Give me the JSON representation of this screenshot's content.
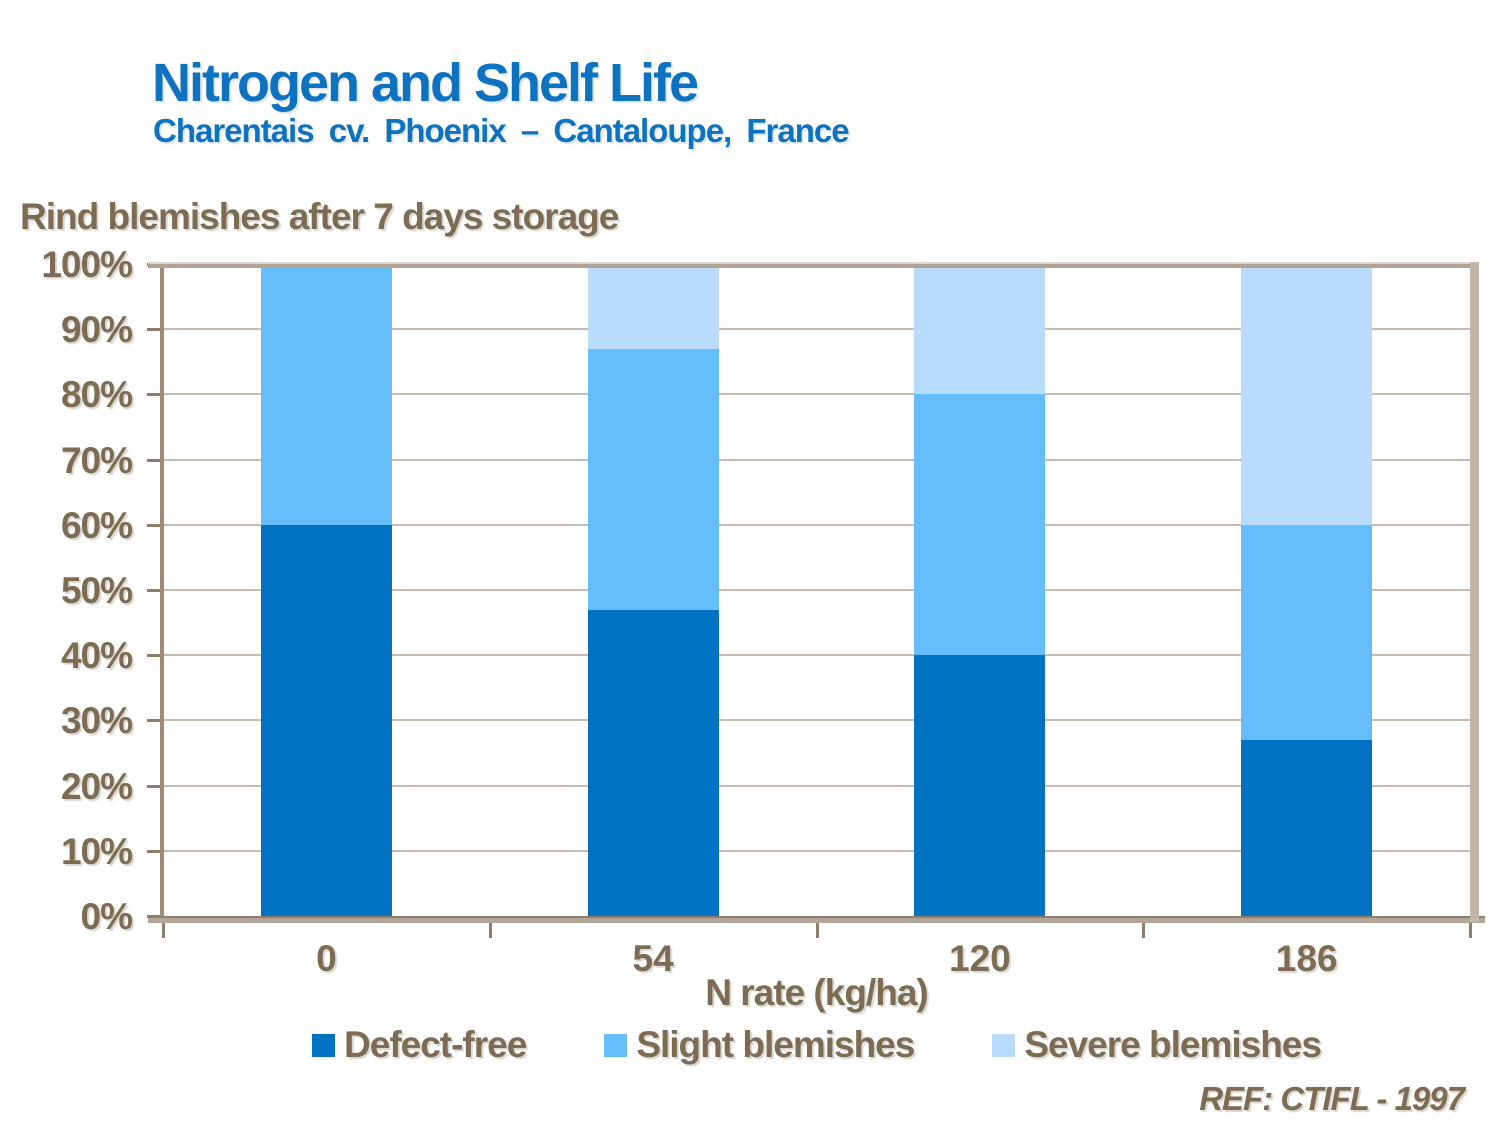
{
  "header": {
    "title": "Nitrogen and Shelf Life",
    "subtitle": "Charentais cv. Phoenix – Cantaloupe, France"
  },
  "chart_heading": "Rind blemishes after 7 days storage",
  "footer": {
    "ref": "REF: CTIFL - 1997"
  },
  "colors": {
    "title_blue": "#0d72c0",
    "text_brown": "#7d6c53",
    "defect_free": "#0072c2",
    "slight_blemishes": "#66bdfb",
    "severe_blemishes": "#b9dcfd",
    "gridline": "#c7bcae",
    "frame_tan": "#c2b6aa",
    "axis_brown": "#8e7e69"
  },
  "chart_data": {
    "type": "bar",
    "stacked": true,
    "title": "Rind blemishes after 7 days storage",
    "categories": [
      "0",
      "54",
      "120",
      "186"
    ],
    "series": [
      {
        "name": "Defect-free",
        "color_key": "defect_free",
        "values": [
          60,
          47,
          40,
          27
        ]
      },
      {
        "name": "Slight blemishes",
        "color_key": "slight_blemishes",
        "values": [
          40,
          40,
          40,
          33
        ]
      },
      {
        "name": "Severe blemishes",
        "color_key": "severe_blemishes",
        "values": [
          0,
          13,
          20,
          40
        ]
      }
    ],
    "xlabel": "N rate (kg/ha)",
    "ylabel": "",
    "ylim": [
      0,
      100
    ],
    "yticks": [
      "0%",
      "10%",
      "20%",
      "30%",
      "40%",
      "50%",
      "60%",
      "70%",
      "80%",
      "90%",
      "100%"
    ],
    "grid": true,
    "legend_position": "bottom"
  }
}
